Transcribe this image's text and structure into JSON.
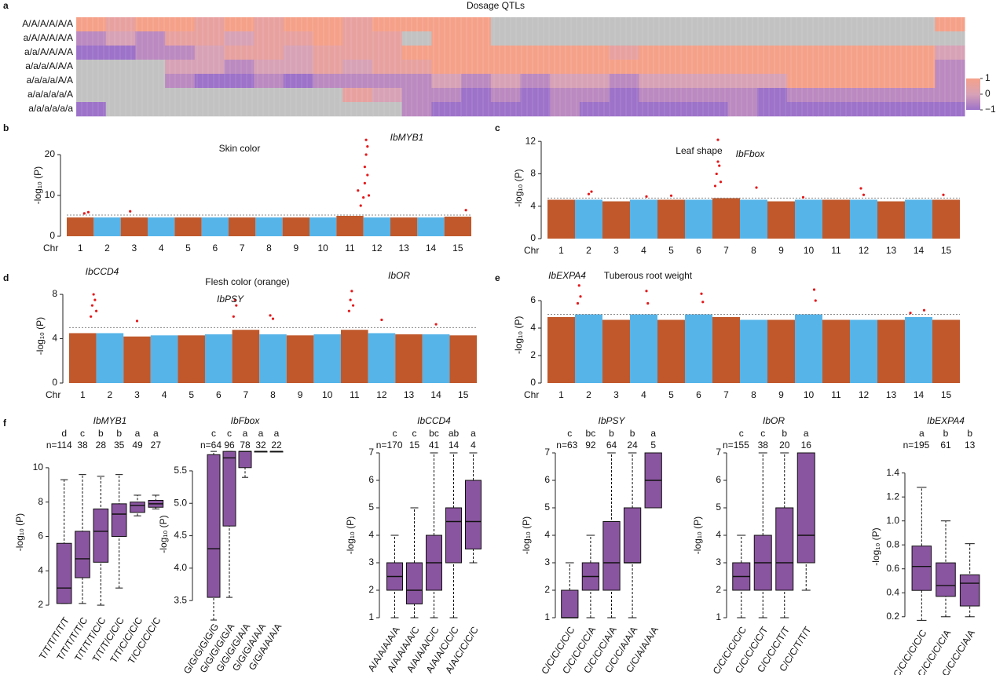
{
  "chart_data": [
    {
      "type": "heatmap",
      "panel": "a",
      "title": "Dosage QTLs",
      "rows": [
        "A/A/A/A/A/A",
        "a/A/A/A/A/A",
        "a/a/A/A/A/A",
        "a/a/a/A/A/A",
        "a/a/a/a/A/A",
        "a/a/a/a/a/A",
        "a/a/a/a/a/a"
      ],
      "values": [
        [
          1,
          0.5,
          1,
          1,
          0.5,
          1,
          0.5,
          1,
          1,
          0.5,
          1,
          1,
          1,
          1,
          null,
          null,
          null,
          null,
          null,
          null,
          null,
          null,
          null,
          null,
          null,
          null,
          null,
          null,
          null,
          1
        ],
        [
          -0.5,
          0,
          -0.5,
          0.5,
          0.5,
          0,
          0.5,
          0.5,
          1,
          0.5,
          0.5,
          null,
          1,
          1,
          null,
          null,
          null,
          null,
          null,
          null,
          null,
          null,
          null,
          null,
          null,
          null,
          null,
          null,
          null,
          null
        ],
        [
          -1,
          -1,
          -0.5,
          -0.5,
          0,
          0.5,
          0.5,
          0,
          0.5,
          0.5,
          0.5,
          1,
          1,
          1,
          1,
          1,
          1,
          1,
          0.5,
          1,
          1,
          1,
          1,
          1,
          1,
          1,
          1,
          1,
          1,
          0
        ],
        [
          null,
          null,
          null,
          0,
          0,
          -0.5,
          0,
          0,
          0.5,
          0,
          0.5,
          0.5,
          1,
          1,
          1,
          1,
          1,
          1,
          1,
          1,
          1,
          1,
          1,
          1,
          1,
          1,
          1,
          1,
          1,
          -0.5
        ],
        [
          null,
          null,
          null,
          -0.5,
          -1,
          -1,
          -0.5,
          -1,
          -0.5,
          -0.5,
          -0.5,
          -0.5,
          0,
          -0.5,
          0,
          -0.5,
          0,
          0,
          -0.5,
          0,
          0,
          0,
          0,
          0,
          1,
          1,
          1,
          1,
          1,
          -0.5
        ],
        [
          null,
          null,
          null,
          null,
          null,
          null,
          null,
          null,
          null,
          0.5,
          0,
          -0.5,
          -0.5,
          -1,
          -0.5,
          -1,
          -0.5,
          -0.5,
          -1,
          -0.5,
          -0.5,
          -0.5,
          -0.5,
          -1,
          -0.5,
          -0.5,
          -0.5,
          -0.5,
          -0.5,
          -0.5
        ],
        [
          -1,
          null,
          null,
          null,
          null,
          null,
          null,
          null,
          null,
          null,
          null,
          -0.5,
          -1,
          -1,
          -1,
          -1,
          -0.5,
          -1,
          -1,
          -1,
          -1,
          -1,
          -0.5,
          -1,
          -1,
          -1,
          -1,
          -1,
          -1,
          -1
        ]
      ],
      "colors": [
        "#9d72c9",
        "#d8a2b6",
        "#f5a189"
      ],
      "na_color": "#c2c2c2",
      "clim": [
        -1,
        1
      ],
      "cticks": [
        1,
        0,
        {
          "value": -1,
          "label": "−1"
        }
      ]
    },
    {
      "type": "manhattan",
      "panel": "b",
      "title": "Skin color",
      "ylabel": "-log₁₀ (P)",
      "xlabel": "Chr",
      "categories": [
        "1",
        "2",
        "3",
        "4",
        "5",
        "6",
        "7",
        "8",
        "9",
        "10",
        "11",
        "12",
        "13",
        "14",
        "15"
      ],
      "values": [
        4.6,
        4.6,
        4.6,
        4.6,
        4.6,
        4.6,
        4.6,
        4.6,
        4.6,
        4.6,
        5,
        4.6,
        4.6,
        4.6,
        4.8
      ],
      "colors": [
        "#c0582b",
        "#56b4e9"
      ],
      "xlim": [
        0.5,
        15.5
      ],
      "ylim": [
        0,
        25
      ],
      "yticks": [
        0,
        10,
        20
      ],
      "threshold": 5.2,
      "points": {
        "x": [
          1.15,
          1.3,
          2.85,
          11.3,
          11.4,
          11.5,
          11.55,
          11.55,
          11.6,
          11.6,
          11.65,
          11.65,
          11.7,
          15.3
        ],
        "y": [
          5.6,
          5.9,
          6.1,
          11.2,
          7.5,
          9.5,
          13,
          17,
          20,
          23.6,
          22,
          15,
          10,
          6.4
        ],
        "color": "#e41a1c"
      },
      "annotations": [
        "IbMYB1"
      ]
    },
    {
      "type": "manhattan",
      "panel": "c",
      "title": "Leaf shape",
      "ylabel": "-log₁₀ (P)",
      "xlabel": "Chr",
      "categories": [
        "1",
        "2",
        "3",
        "4",
        "5",
        "6",
        "7",
        "8",
        "9",
        "10",
        "11",
        "12",
        "13",
        "14",
        "15"
      ],
      "values": [
        4.8,
        4.8,
        4.6,
        4.8,
        4.8,
        4.8,
        5,
        4.8,
        4.6,
        4.8,
        4.8,
        4.8,
        4.6,
        4.8,
        4.8
      ],
      "colors": [
        "#c0582b",
        "#56b4e9"
      ],
      "xlim": [
        0.5,
        15.5
      ],
      "ylim": [
        0,
        12.5
      ],
      "yticks": [
        0,
        4,
        8,
        12
      ],
      "threshold": 5,
      "points": {
        "x": [
          2.0,
          2.1,
          4.1,
          5.0,
          6.6,
          6.65,
          6.7,
          6.7,
          6.75,
          6.8,
          8.1,
          9.8,
          11.9,
          12.0,
          14.9
        ],
        "y": [
          5.5,
          5.8,
          5.2,
          5.3,
          6.5,
          8,
          9.5,
          12.2,
          9,
          7,
          6.3,
          5.1,
          6.2,
          5.4,
          5.4
        ],
        "color": "#e41a1c"
      },
      "annotations": [
        "IbFbox"
      ]
    },
    {
      "type": "manhattan",
      "panel": "d",
      "title": "Flesh color (orange)",
      "ylabel": "-log₁₀ (P)",
      "xlabel": "Chr",
      "categories": [
        "1",
        "2",
        "3",
        "4",
        "5",
        "6",
        "7",
        "8",
        "9",
        "10",
        "11",
        "12",
        "13",
        "14",
        "15"
      ],
      "values": [
        4.5,
        4.5,
        4.2,
        4.3,
        4.3,
        4.4,
        4.8,
        4.4,
        4.3,
        4.4,
        4.8,
        4.5,
        4.4,
        4.4,
        4.3
      ],
      "colors": [
        "#c0582b",
        "#56b4e9"
      ],
      "xlim": [
        0.5,
        15.5
      ],
      "ylim": [
        0,
        8.5
      ],
      "yticks": [
        0,
        4,
        8
      ],
      "threshold": 5,
      "points": {
        "x": [
          1.3,
          1.35,
          1.4,
          1.45,
          1.5,
          3.0,
          6.55,
          6.6,
          6.65,
          7.9,
          8.0,
          10.8,
          10.85,
          10.9,
          10.95,
          12.0,
          14.0
        ],
        "y": [
          6,
          7,
          8,
          7.5,
          6.5,
          5.6,
          6,
          7.5,
          7,
          6.1,
          5.8,
          6.5,
          7.5,
          8.3,
          7,
          5.7,
          5.3
        ],
        "color": "#e41a1c"
      },
      "annotations": [
        "IbCCD4",
        "IbPSY",
        "IbOR"
      ]
    },
    {
      "type": "manhattan",
      "panel": "e",
      "title": "Tuberous root weight",
      "ylabel": "-log₁₀ (P)",
      "xlabel": "Chr",
      "categories": [
        "1",
        "2",
        "3",
        "4",
        "5",
        "6",
        "7",
        "8",
        "9",
        "10",
        "11",
        "12",
        "13",
        "14",
        "15"
      ],
      "values": [
        4.8,
        5,
        4.6,
        5,
        4.6,
        5,
        4.8,
        4.6,
        4.6,
        5,
        4.6,
        4.6,
        4.6,
        4.8,
        4.6
      ],
      "colors": [
        "#c0582b",
        "#56b4e9"
      ],
      "xlim": [
        0.5,
        15.5
      ],
      "ylim": [
        0,
        7
      ],
      "yticks": [
        0,
        2,
        4,
        6
      ],
      "threshold": 5,
      "points": {
        "x": [
          1.6,
          1.65,
          1.7,
          4.1,
          4.15,
          6.1,
          6.15,
          10.2,
          10.25,
          13.7,
          14.2
        ],
        "y": [
          5.8,
          7.1,
          6.3,
          6.7,
          5.8,
          6.5,
          5.9,
          6.8,
          6,
          5.1,
          5.3
        ],
        "color": "#e41a1c"
      },
      "annotations": [
        "IbEXPA4"
      ]
    },
    {
      "type": "box",
      "panel": "f",
      "title": "IbMYB1",
      "ylabel": "-log₁₀ (P)",
      "color": "#8a55a0",
      "categories": [
        "T/T/T/T/T/T",
        "T/T/T/T/T/C",
        "T/T/T/T/C/C",
        "T/T/T/C/C/C",
        "T/T/C/C/C/C",
        "T/C/C/C/C/C"
      ],
      "letters": [
        "d",
        "c",
        "b",
        "b",
        "a",
        "a"
      ],
      "n": [
        "n=114",
        "38",
        "28",
        "35",
        "49",
        "27"
      ],
      "min": [
        2.1,
        2.1,
        2,
        3,
        7.2,
        7.6
      ],
      "q1": [
        2.1,
        3.6,
        4.5,
        6,
        7.4,
        7.7
      ],
      "median": [
        3,
        4.7,
        6.3,
        7.3,
        7.8,
        7.9
      ],
      "q3": [
        5.6,
        6.3,
        7.6,
        7.9,
        8,
        8.1
      ],
      "max": [
        9.3,
        9.6,
        9.5,
        9.6,
        8.4,
        8.4
      ],
      "ylim": [
        1.5,
        11
      ],
      "yticks": [
        2,
        4,
        6,
        8,
        10
      ]
    },
    {
      "type": "box",
      "title": "IbFbox",
      "ylabel": "-log₁₀ (P)",
      "color": "#8a55a0",
      "categories": [
        "G/G/G/G/G/G",
        "G/G/G/G/G/A",
        "G/G/G/G/A/A",
        "G/G/G/A/A/A",
        "G/G/A/A/A/A"
      ],
      "letters": [
        "c",
        "c",
        "a",
        "a",
        "a"
      ],
      "n": [
        "n=64",
        "96",
        "78",
        "32",
        "22"
      ],
      "min": [
        3.2,
        3.55,
        5.4,
        5.8,
        5.8
      ],
      "q1": [
        3.55,
        4.65,
        5.55,
        5.8,
        5.8
      ],
      "median": [
        4.3,
        5.7,
        5.8,
        5.8,
        5.8
      ],
      "q3": [
        5.75,
        5.8,
        5.8,
        5.8,
        5.8
      ],
      "max": [
        5.8,
        5.8,
        5.8,
        5.8,
        5.8
      ],
      "ylim": [
        3.2,
        5.85
      ],
      "yticks": [
        3.5,
        {
          "value": 4,
          "label": "4.0"
        },
        4.5,
        {
          "value": 5,
          "label": "5.0"
        },
        5.5
      ]
    },
    {
      "type": "box",
      "title": "IbCCD4",
      "ylabel": "-log₁₀ (P)",
      "color": "#8a55a0",
      "categories": [
        "A/A/A/A/A/A",
        "A/A/A/A/A/C",
        "A/A/A/A/C/C",
        "A/A/A/C/C/C",
        "A/A/C/C/C/C"
      ],
      "letters": [
        "c",
        "c",
        "bc",
        "ab",
        "a"
      ],
      "n": [
        "n=170",
        "15",
        "41",
        "14",
        "4"
      ],
      "min": [
        1,
        1,
        1,
        1,
        3
      ],
      "q1": [
        2,
        1.5,
        2,
        3,
        3.5
      ],
      "median": [
        2.5,
        2,
        3,
        4.5,
        4.5
      ],
      "q3": [
        3,
        3,
        4,
        5,
        6
      ],
      "max": [
        4,
        5,
        7,
        7,
        7
      ],
      "ylim": [
        0.8,
        7.2
      ],
      "yticks": [
        1,
        2,
        3,
        4,
        5,
        6,
        7
      ]
    },
    {
      "type": "box",
      "title": "IbPSY",
      "ylabel": "-log₁₀ (P)",
      "color": "#8a55a0",
      "categories": [
        "C/C/C/C/C/C",
        "C/C/C/C/C/A",
        "C/C/C/C/A/A",
        "C/C/C/A/A/A",
        "C/C/A/A/A/A"
      ],
      "letters": [
        "c",
        "bc",
        "b",
        "b",
        "a"
      ],
      "n": [
        "n=63",
        "92",
        "64",
        "24",
        "5"
      ],
      "min": [
        1,
        1,
        1,
        1,
        5
      ],
      "q1": [
        1,
        2,
        2,
        3,
        5
      ],
      "median": [
        1,
        2.5,
        3,
        3,
        6
      ],
      "q3": [
        2,
        3,
        4.5,
        5,
        7
      ],
      "max": [
        3,
        4,
        7,
        7,
        7
      ],
      "ylim": [
        0.8,
        7.2
      ],
      "yticks": [
        1,
        2,
        3,
        4,
        5,
        6,
        7
      ]
    },
    {
      "type": "box",
      "title": "IbOR",
      "ylabel": "-log₁₀ (P)",
      "color": "#8a55a0",
      "categories": [
        "C/C/C/C/C/C",
        "C/C/C/C/C/T",
        "C/C/C/C/T/T",
        "C/C/C/T/T/T"
      ],
      "letters": [
        "c",
        "c",
        "b",
        "a"
      ],
      "n": [
        "n=155",
        "38",
        "20",
        "16"
      ],
      "min": [
        1,
        1,
        1,
        2
      ],
      "q1": [
        2,
        2,
        2,
        3
      ],
      "median": [
        2.5,
        3,
        3,
        4
      ],
      "q3": [
        3,
        4,
        5,
        7
      ],
      "max": [
        4,
        7,
        7,
        7
      ],
      "ylim": [
        0.8,
        7.2
      ],
      "yticks": [
        1,
        2,
        3,
        4,
        5,
        6,
        7
      ]
    },
    {
      "type": "box",
      "title": "IbEXPA4",
      "ylabel": "-log₁₀ (P)",
      "color": "#8a55a0",
      "categories": [
        "C/C/C/C/C/C",
        "C/C/C/C/C/A",
        "C/C/C/C/A/A"
      ],
      "letters": [
        "a",
        "b",
        "b"
      ],
      "n": [
        "n=195",
        "61",
        "13"
      ],
      "min": [
        0.17,
        0.2,
        0.2
      ],
      "q1": [
        0.42,
        0.37,
        0.29
      ],
      "median": [
        0.62,
        0.46,
        0.48
      ],
      "q3": [
        0.79,
        0.65,
        0.55
      ],
      "max": [
        1.28,
        1.0,
        0.81
      ],
      "ylim": [
        0.12,
        1.45
      ],
      "yticks": [
        0.2,
        0.4,
        0.6,
        0.8,
        {
          "value": 1,
          "label": "1.0"
        },
        1.2,
        1.4
      ]
    }
  ]
}
